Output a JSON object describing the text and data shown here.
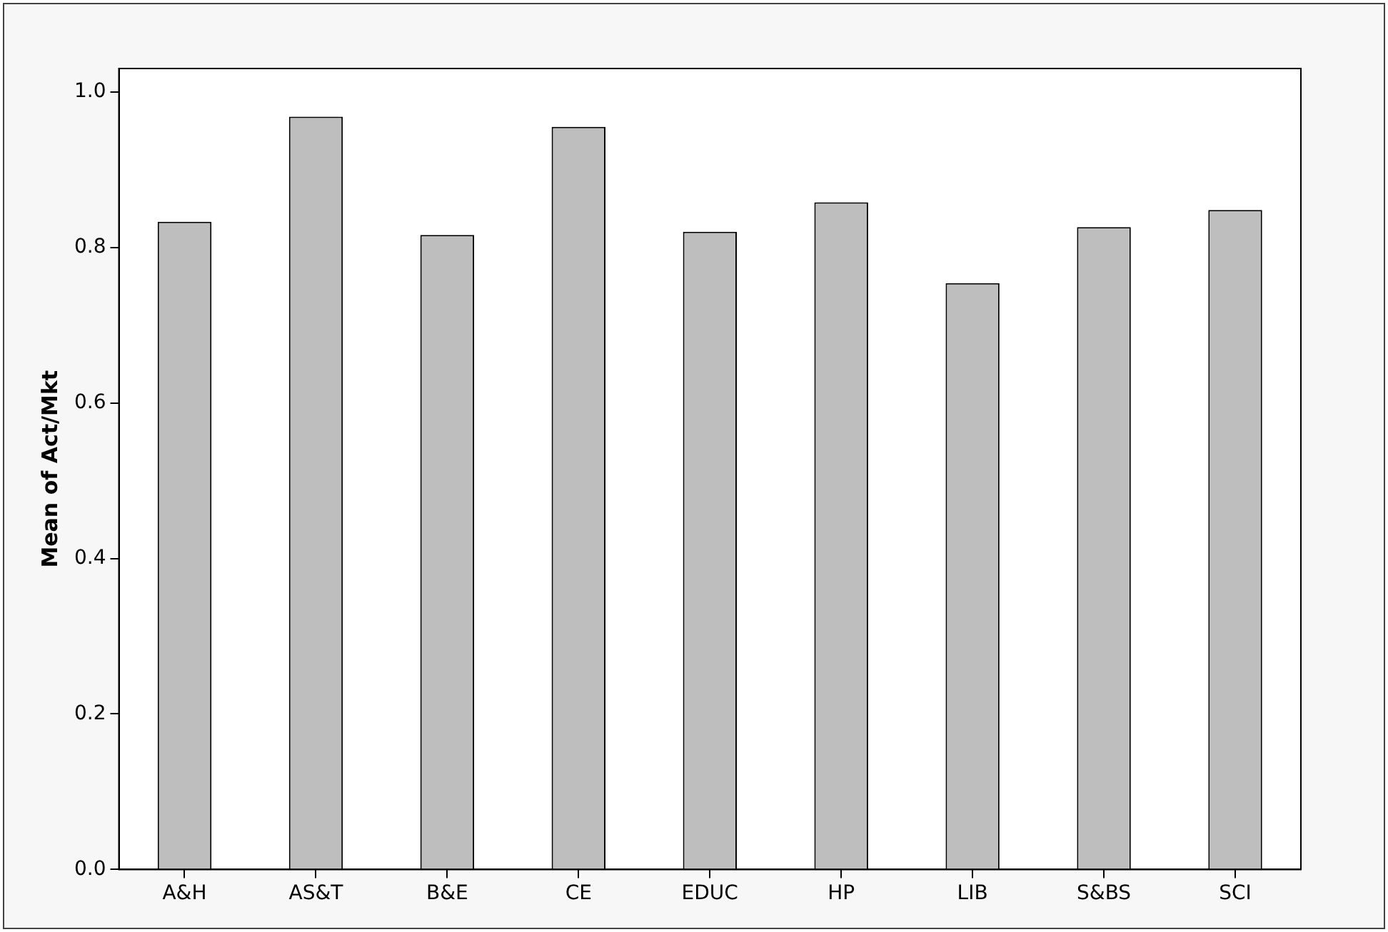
{
  "chart_data": {
    "type": "bar",
    "ylabel": "Mean of Act/Mkt",
    "categories": [
      "A&H",
      "AS&T",
      "B&E",
      "CE",
      "EDUC",
      "HP",
      "LIB",
      "S&BS",
      "SCI"
    ],
    "values": [
      0.833,
      0.968,
      0.816,
      0.955,
      0.82,
      0.858,
      0.754,
      0.826,
      0.848
    ],
    "color": "#bebebe",
    "ylim": [
      0,
      1.03
    ],
    "yticks": [
      {
        "value": 0,
        "label": "0.0"
      },
      0.2,
      0.4,
      0.6,
      0.8,
      {
        "value": 1,
        "label": "1.0"
      }
    ],
    "grid": false,
    "legend": false
  }
}
